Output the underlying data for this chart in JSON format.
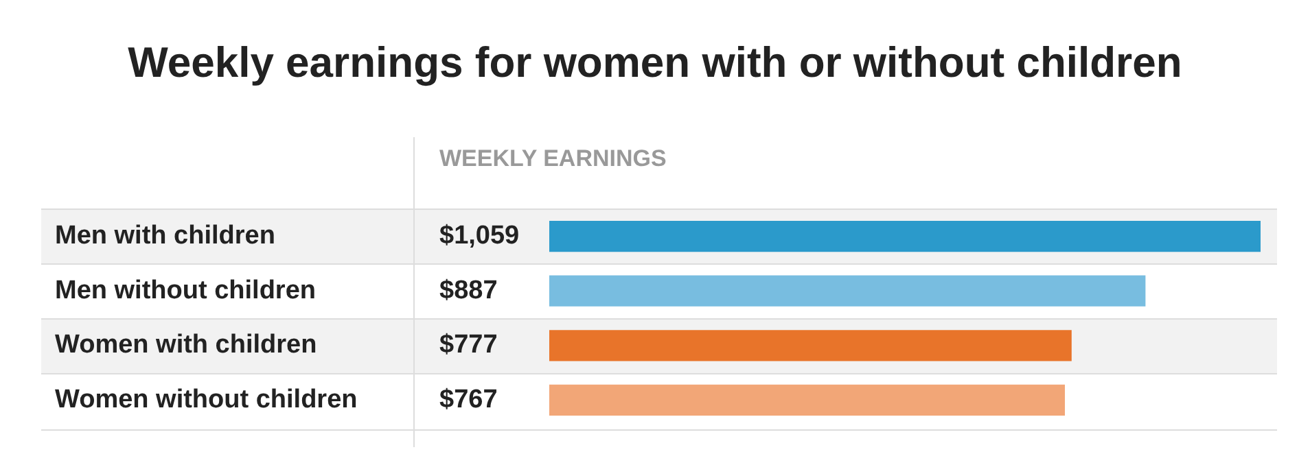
{
  "chart_data": {
    "type": "bar",
    "orientation": "horizontal",
    "title": "Weekly earnings for women with or without children",
    "xlabel": "WEEKLY EARNINGS",
    "categories": [
      "Men with children",
      "Men without children",
      "Women with children",
      "Women without children"
    ],
    "values": [
      1059,
      887,
      777,
      767
    ],
    "value_labels": [
      "$1,059",
      "$887",
      "$777",
      "$767"
    ],
    "colors": [
      "#2b9acb",
      "#78bde0",
      "#e8742a",
      "#f2a677"
    ],
    "legend": false
  }
}
